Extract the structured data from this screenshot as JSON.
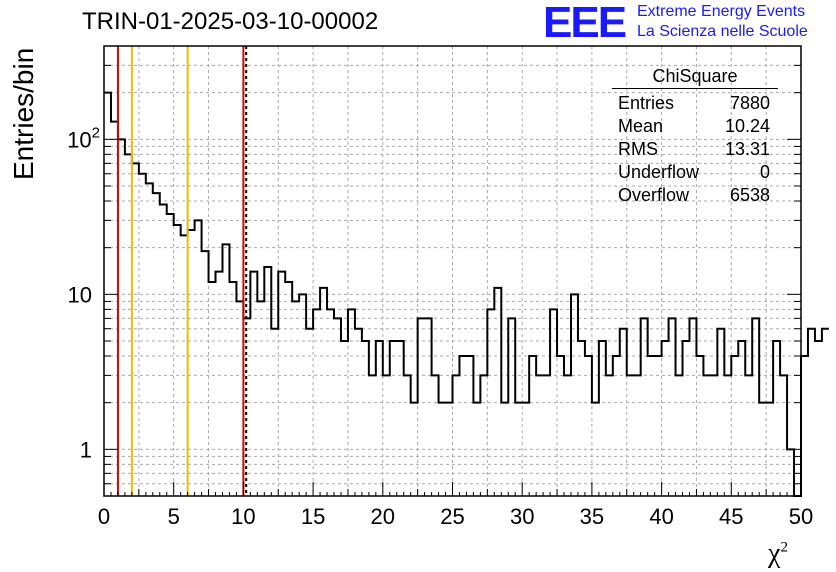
{
  "header": {
    "title": "TRIN-01-2025-03-10-00002",
    "logo_text": "EEE",
    "logo_line1": "Extreme Energy Events",
    "logo_line2": "La Scienza nelle Scuole"
  },
  "stats": {
    "title": "ChiSquare",
    "rows": [
      {
        "label": "Entries",
        "value": "7880"
      },
      {
        "label": "Mean",
        "value": "10.24"
      },
      {
        "label": "RMS",
        "value": "13.31"
      },
      {
        "label": "Underflow",
        "value": "0"
      },
      {
        "label": "Overflow",
        "value": "6538"
      }
    ]
  },
  "colors": {
    "histogram": "#000000",
    "red_line": "#dd0000",
    "yellow_line": "#eebb00",
    "grid": "#aaaaaa",
    "logo": "#1a1aff"
  },
  "chart_data": {
    "type": "bar",
    "style": "step-histogram",
    "xlabel": "χ",
    "xlabel_sup": "2",
    "ylabel": "Entries/bin",
    "xlim": [
      0,
      50
    ],
    "ylim": [
      0.5,
      400
    ],
    "yscale": "log",
    "grid": true,
    "bin_width": 0.5,
    "x_ticks": [
      "0",
      "5",
      "10",
      "15",
      "20",
      "25",
      "30",
      "35",
      "40",
      "45",
      "50"
    ],
    "y_ticks": [
      {
        "value": 1,
        "label": "1",
        "sup": ""
      },
      {
        "value": 10,
        "label": "10",
        "sup": ""
      },
      {
        "value": 100,
        "label": "10",
        "sup": "2"
      }
    ],
    "values": [
      200,
      130,
      100,
      80,
      70,
      60,
      52,
      45,
      38,
      33,
      28,
      24,
      26,
      30,
      19,
      12,
      14,
      21,
      12,
      9,
      7,
      14,
      9,
      15,
      6,
      14,
      12,
      9,
      10,
      6,
      8,
      11,
      8,
      7,
      5,
      8,
      6,
      5,
      3,
      5,
      3,
      5,
      5,
      3,
      2,
      7,
      7,
      3,
      2,
      2,
      3,
      4,
      4,
      2,
      3,
      8,
      11,
      2,
      7,
      2,
      2,
      4,
      3,
      3,
      8,
      4,
      3,
      10,
      5,
      4,
      2,
      5,
      3,
      4,
      6,
      3,
      3,
      7,
      4,
      4,
      5,
      7,
      3,
      5,
      7,
      4,
      3,
      3,
      6,
      3,
      4,
      5,
      3,
      7,
      2,
      2,
      5,
      3,
      1,
      0,
      4,
      6,
      5,
      6
    ],
    "vertical_lines": [
      {
        "x": 1,
        "color": "red",
        "style": "solid"
      },
      {
        "x": 2,
        "color": "yellow",
        "style": "solid"
      },
      {
        "x": 6,
        "color": "yellow",
        "style": "solid"
      },
      {
        "x": 10,
        "color": "red",
        "style": "solid"
      },
      {
        "x": 10.2,
        "color": "black",
        "style": "dashed"
      }
    ]
  }
}
